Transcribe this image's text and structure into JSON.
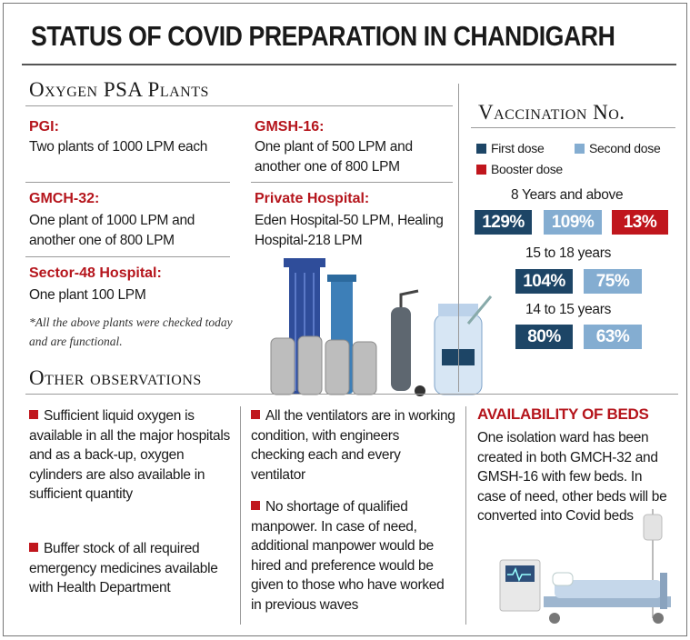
{
  "title": "STATUS OF COVID PREPARATION IN CHANDIGARH",
  "oxygen": {
    "heading": "Oxygen PSA Plants",
    "items": [
      {
        "label": "PGI:",
        "text": "Two plants of 1000 LPM each"
      },
      {
        "label": "GMSH-16:",
        "text": "One plant of 500 LPM and another one of 800 LPM"
      },
      {
        "label": "GMCH-32:",
        "text": "One plant of 1000 LPM and another one of 800 LPM"
      },
      {
        "label": "Private Hospital:",
        "text": "Eden Hospital-50 LPM, Healing Hospital-218 LPM"
      },
      {
        "label": "Sector-48 Hospital:",
        "text": "One plant 100 LPM"
      }
    ],
    "note": "*All the above plants were checked today and are functional."
  },
  "observations": {
    "heading": "Other observations",
    "items": [
      "Sufficient liquid oxygen is available in all the major hospitals and as a back-up, oxygen cylinders are also available in sufficient quantity",
      "Buffer stock of all required emergency medicines available with Health Department",
      "All the ventilators are in working condition, with engineers checking each and every ventilator",
      "No shortage of qualified manpower. In case of need, additional manpower would be hired and preference would be given to those who have worked in previous waves"
    ]
  },
  "vaccination": {
    "heading": "Vaccination No.",
    "legend": {
      "first": "First dose",
      "second": "Second dose",
      "booster": "Booster dose"
    },
    "colors": {
      "first": "#1d4566",
      "second": "#84add1",
      "booster": "#c0161d"
    },
    "groups": [
      {
        "label": "8 Years and above",
        "first": "129%",
        "second": "109%",
        "booster": "13%"
      },
      {
        "label": "15 to 18 years",
        "first": "104%",
        "second": "75%"
      },
      {
        "label": "14 to 15 years",
        "first": "80%",
        "second": "63%"
      }
    ]
  },
  "beds": {
    "heading": "AVAILABILITY OF BEDS",
    "text": "One isolation ward has been created in both GMCH-32 and GMSH-16 with few beds. In case of need, other beds will be converted into Covid beds"
  }
}
